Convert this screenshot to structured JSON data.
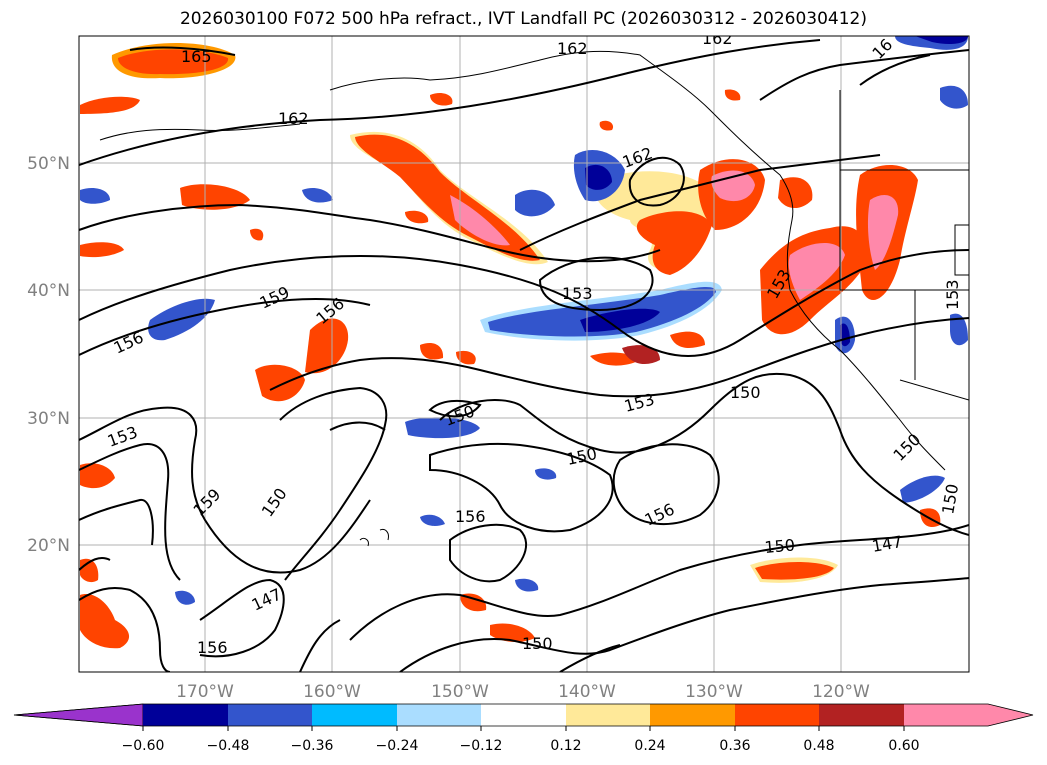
{
  "title": "2026030100 F072 500 hPa refract., IVT Landfall PC (2026030312 - 2026030412)",
  "lat_labels": [
    "50°N",
    "40°N",
    "30°N",
    "20°N"
  ],
  "lon_labels": [
    "170°W",
    "160°W",
    "150°W",
    "140°W",
    "130°W",
    "120°W"
  ],
  "contour_labels": [
    "165",
    "162",
    "162",
    "162",
    "16",
    "162",
    "159",
    "156",
    "156",
    "153",
    "153",
    "153",
    "153",
    "150",
    "150",
    "150",
    "150",
    "150",
    "150",
    "150",
    "150",
    "147",
    "147",
    "156",
    "156",
    "156",
    "159",
    "153"
  ],
  "colorbar": {
    "colors": [
      "#9a33cc",
      "#000099",
      "#3355cc",
      "#00bbff",
      "#aaddff",
      "#ffffff",
      "#ffe999",
      "#ff9900",
      "#ff4400",
      "#b22222",
      "#ff88aa",
      "#ff88aa"
    ],
    "tick_labels": [
      "−0.60",
      "−0.48",
      "−0.36",
      "−0.24",
      "−0.12",
      "0.12",
      "0.24",
      "0.36",
      "0.48",
      "0.60"
    ]
  }
}
